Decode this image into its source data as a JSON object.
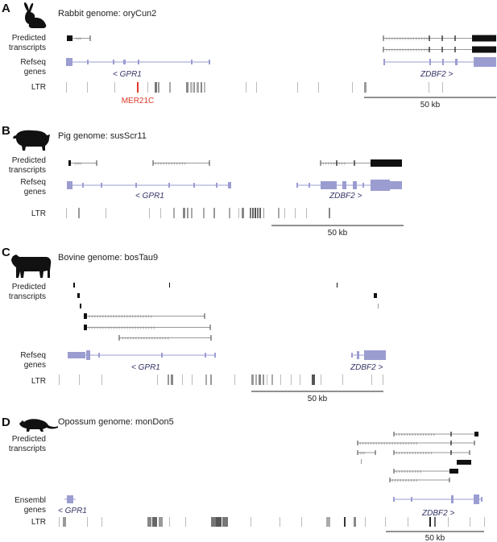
{
  "colors": {
    "gene": "#9b9dd1",
    "transcript": "#111111",
    "ltr": "#777777",
    "mer21c": "#d93a2b",
    "text": "#222222"
  },
  "labels": {
    "predicted": [
      "Predicted",
      "transcripts"
    ],
    "refseq": [
      "Refseq",
      "genes"
    ],
    "ensembl": [
      "Ensembl",
      "genes"
    ],
    "ltr": "LTR",
    "scale": "50 kb"
  },
  "panels": [
    {
      "letter": "A",
      "title": "Rabbit genome: oryCun2",
      "icon": "rabbit-icon",
      "gene_left": "< GPR1",
      "gene_right": "ZDBF2 >",
      "annotation": "MER21C"
    },
    {
      "letter": "B",
      "title": "Pig genome: susScr11",
      "icon": "pig-icon",
      "gene_left": "< GPR1",
      "gene_right": "ZDBF2 >"
    },
    {
      "letter": "C",
      "title": "Bovine genome: bosTau9",
      "icon": "cow-icon",
      "gene_left": "< GPR1",
      "gene_right": "ZDBF2 >"
    },
    {
      "letter": "D",
      "title": "Opossum genome: monDon5",
      "icon": "opossum-icon",
      "gene_left": "< GPR1",
      "gene_right": "ZDBF2 >"
    }
  ]
}
